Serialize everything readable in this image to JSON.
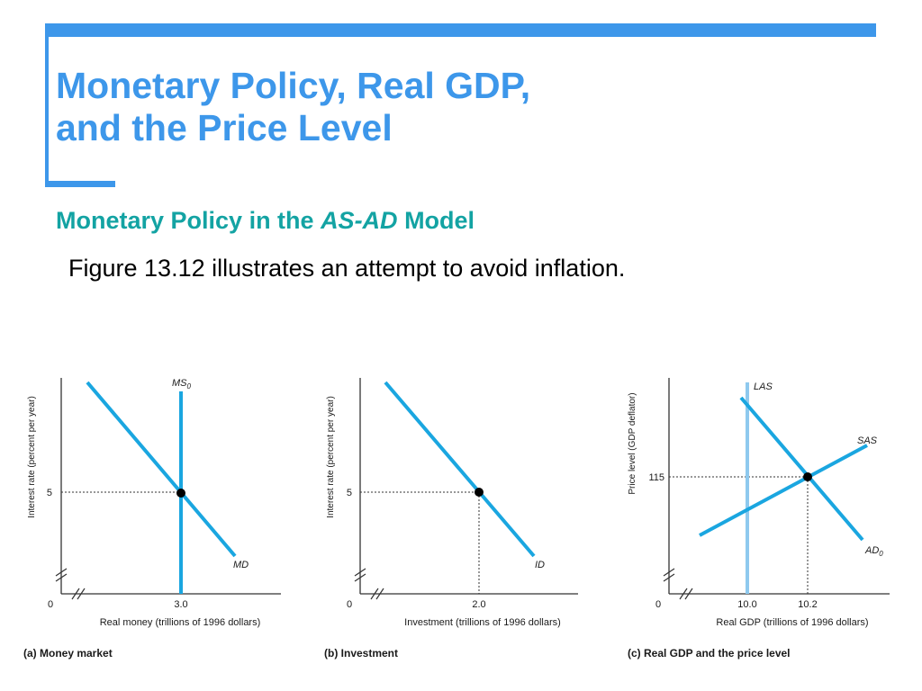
{
  "slide": {
    "title_line1": "Monetary Policy, Real GDP,",
    "title_line2": "and the Price Level",
    "subtitle_pre": "Monetary Policy in the ",
    "subtitle_italic": "AS-AD",
    "subtitle_post": " Model",
    "body": "Figure 13.12 illustrates an attempt to avoid inflation."
  },
  "colors": {
    "accent": "#3d97ea",
    "subtitle": "#13a3a3",
    "curve": "#1aa6e0",
    "las": "#8ec9ee"
  },
  "chart_data": [
    {
      "type": "line",
      "caption": "(a) Money market",
      "xlabel": "Real money (trillions of 1996 dollars)",
      "ylabel": "Interest rate (percent per year)",
      "origin_label": "0",
      "x_ticks": [
        "3.0"
      ],
      "y_ticks": [
        "5"
      ],
      "series": [
        {
          "name": "MD",
          "label": "MD"
        },
        {
          "name": "MS0",
          "label_main": "MS",
          "label_sub": "0"
        }
      ],
      "equilibrium": {
        "x": 3.0,
        "y": 5
      }
    },
    {
      "type": "line",
      "caption": "(b) Investment",
      "xlabel": "Investment (trillions of 1996 dollars)",
      "ylabel": "Interest rate (percent per year)",
      "origin_label": "0",
      "x_ticks": [
        "2.0"
      ],
      "y_ticks": [
        "5"
      ],
      "series": [
        {
          "name": "ID",
          "label": "ID"
        }
      ],
      "equilibrium": {
        "x": 2.0,
        "y": 5
      }
    },
    {
      "type": "line",
      "caption": "(c) Real GDP and the price level",
      "xlabel": "Real GDP (trillions of 1996 dollars)",
      "ylabel": "Price level (GDP deflator)",
      "origin_label": "0",
      "x_ticks": [
        "10.0",
        "10.2"
      ],
      "y_ticks": [
        "115"
      ],
      "series": [
        {
          "name": "LAS",
          "label": "LAS"
        },
        {
          "name": "SAS",
          "label": "SAS"
        },
        {
          "name": "AD0",
          "label_main": "AD",
          "label_sub": "0"
        }
      ],
      "equilibrium": {
        "x": 10.2,
        "y": 115
      }
    }
  ]
}
